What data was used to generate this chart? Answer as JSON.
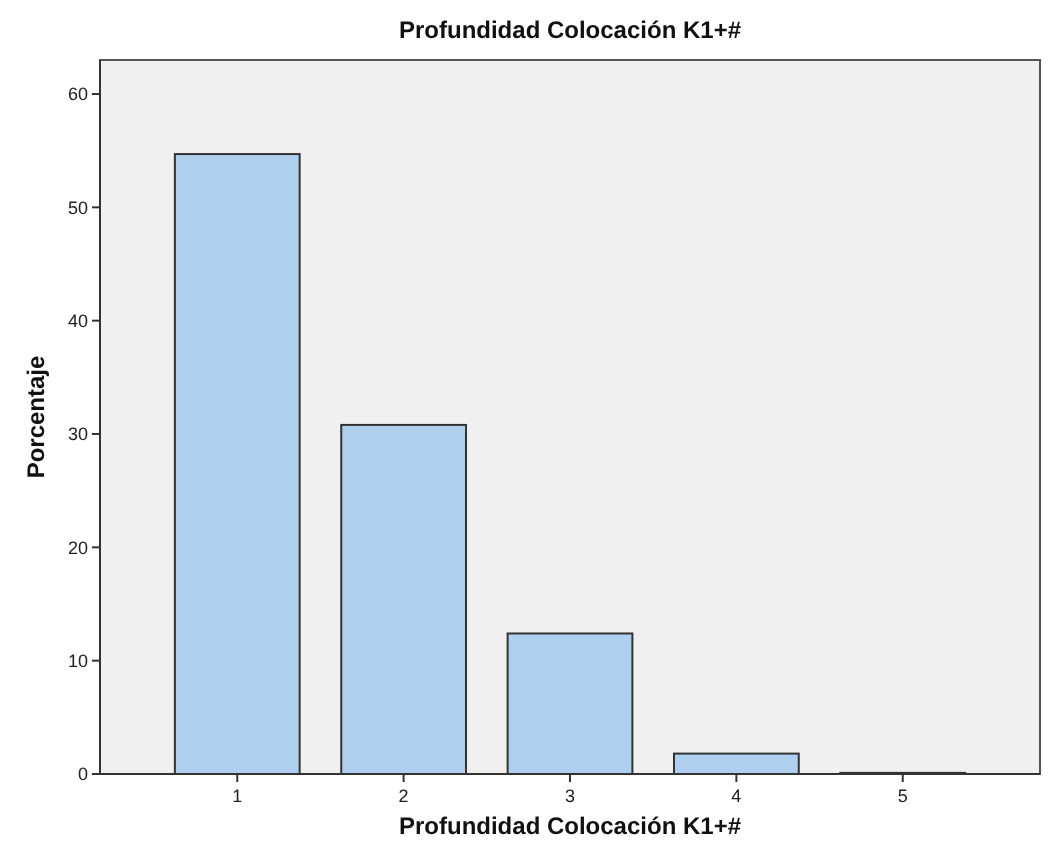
{
  "chart_data": {
    "type": "bar",
    "title": "Profundidad Colocación K1+#",
    "xlabel": "Profundidad Colocación K1+#",
    "ylabel": "Porcentaje",
    "categories": [
      "1",
      "2",
      "3",
      "4",
      "5"
    ],
    "values": [
      54.7,
      30.8,
      12.4,
      1.8,
      0.1
    ],
    "color": "#aecfed",
    "ylim": [
      0,
      63
    ],
    "yticks": [
      0,
      10,
      20,
      30,
      40,
      50,
      60
    ],
    "grid": false
  }
}
